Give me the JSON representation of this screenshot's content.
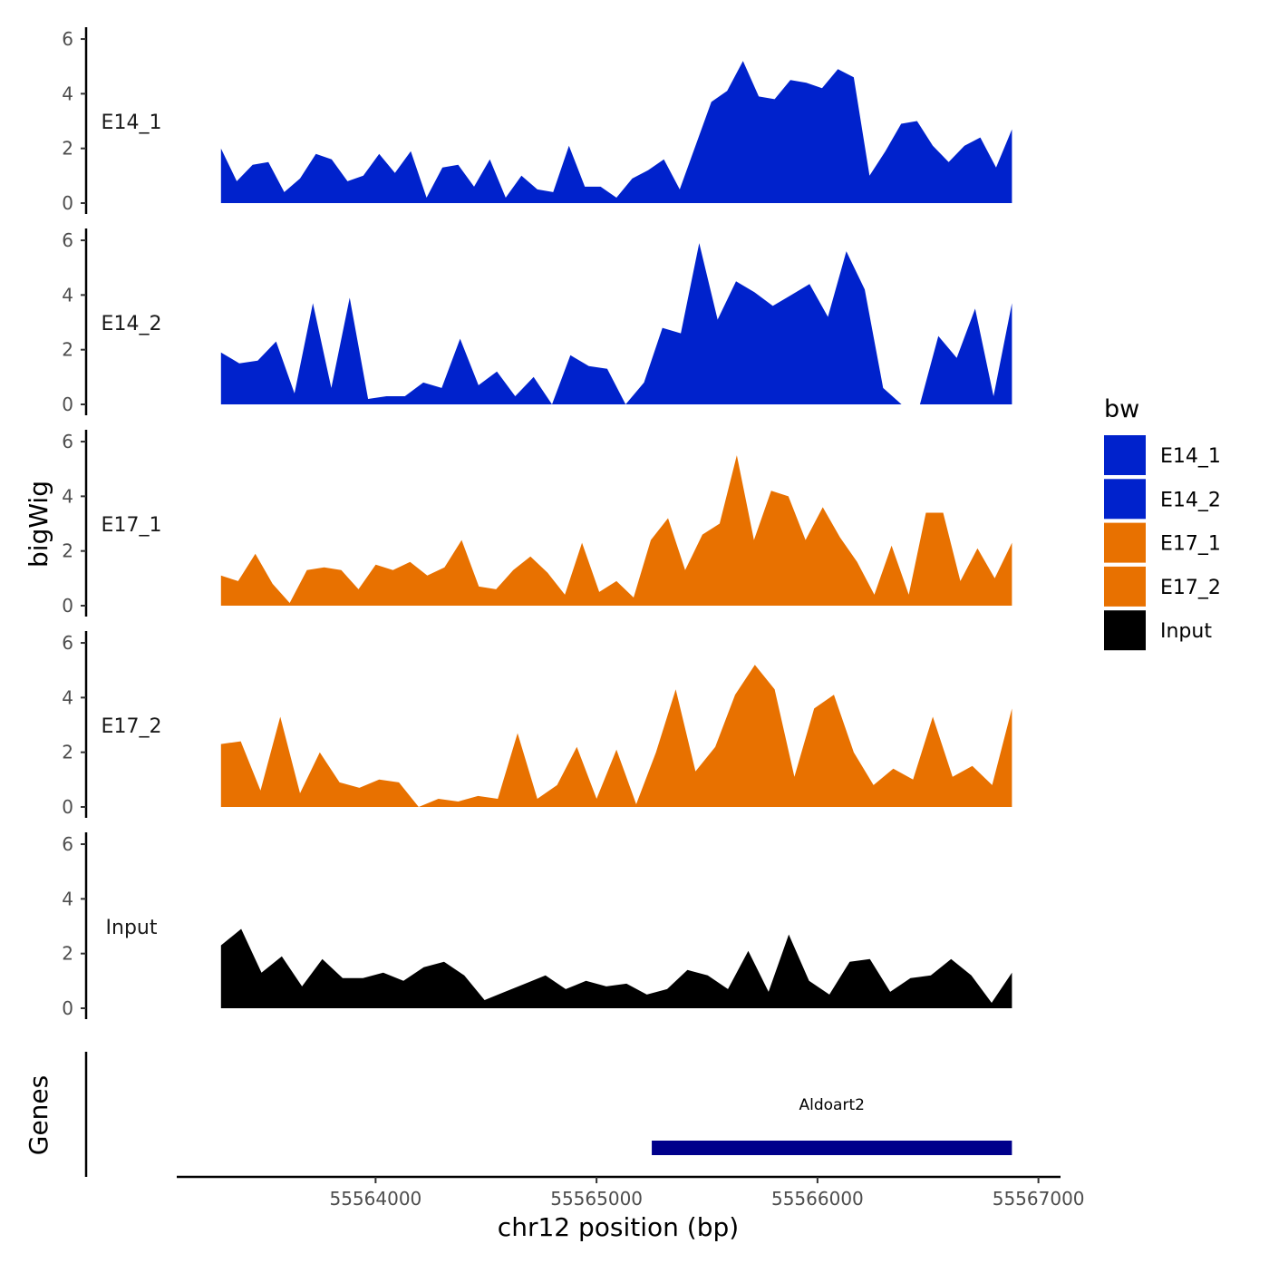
{
  "chart_data": {
    "type": "area",
    "region": "chr12",
    "xlabel": "chr12 position (bp)",
    "ylabel": "bigWig",
    "genes_label": "Genes",
    "xlim": [
      55563100,
      55567100
    ],
    "ylim": [
      0,
      6.3
    ],
    "yticks": [
      0,
      2,
      4,
      6
    ],
    "xticks": [
      55564000,
      55565000,
      55566000,
      55567000
    ],
    "xtick_labels": [
      "55564000",
      "55565000",
      "55566000",
      "55567000"
    ],
    "ytick_labels": [
      "0",
      "2",
      "4",
      "6"
    ],
    "data_start": 55563300,
    "data_step": 100,
    "legend": {
      "title": "bw",
      "entries": [
        {
          "label": "E14_1",
          "color": "#0022cc"
        },
        {
          "label": "E14_2",
          "color": "#0022cc"
        },
        {
          "label": "E17_1",
          "color": "#e87100"
        },
        {
          "label": "E17_2",
          "color": "#e87100"
        },
        {
          "label": "Input",
          "color": "#000000"
        }
      ]
    },
    "series": [
      {
        "name": "E14_1",
        "color": "#0022cc",
        "values": [
          2.0,
          0.8,
          1.4,
          1.5,
          0.4,
          0.9,
          1.8,
          1.6,
          0.8,
          1.0,
          1.8,
          1.1,
          1.9,
          0.2,
          1.3,
          1.4,
          0.6,
          1.6,
          0.2,
          1.0,
          0.5,
          0.4,
          2.1,
          0.6,
          0.6,
          0.2,
          0.9,
          1.2,
          1.6,
          0.5,
          2.1,
          3.7,
          4.1,
          5.2,
          3.9,
          3.8,
          4.5,
          4.4,
          4.2,
          4.9,
          4.6,
          1.0,
          1.9,
          2.9,
          3.0,
          2.1,
          1.5,
          2.1,
          2.4,
          1.3,
          2.7
        ]
      },
      {
        "name": "E14_2",
        "color": "#0022cc",
        "values": [
          1.9,
          1.5,
          1.6,
          2.3,
          0.4,
          3.7,
          0.6,
          3.9,
          0.2,
          0.3,
          0.3,
          0.8,
          0.6,
          2.4,
          0.7,
          1.2,
          0.3,
          1.0,
          0.0,
          1.8,
          1.4,
          1.3,
          0.0,
          0.8,
          2.8,
          2.6,
          5.9,
          3.1,
          4.5,
          4.1,
          3.6,
          4.0,
          4.4,
          3.2,
          5.6,
          4.2,
          0.6,
          0.0,
          0.0,
          2.5,
          1.7,
          3.5,
          0.3,
          3.7
        ]
      },
      {
        "name": "E17_1",
        "color": "#e87100",
        "values": [
          1.1,
          0.9,
          1.9,
          0.8,
          0.1,
          1.3,
          1.4,
          1.3,
          0.6,
          1.5,
          1.3,
          1.6,
          1.1,
          1.4,
          2.4,
          0.7,
          0.6,
          1.3,
          1.8,
          1.2,
          0.4,
          2.3,
          0.5,
          0.9,
          0.3,
          2.4,
          3.2,
          1.3,
          2.6,
          3.0,
          5.5,
          2.4,
          4.2,
          4.0,
          2.4,
          3.6,
          2.5,
          1.6,
          0.4,
          2.2,
          0.4,
          3.4,
          3.4,
          0.9,
          2.1,
          1.0,
          2.3
        ]
      },
      {
        "name": "E17_2",
        "color": "#e87100",
        "values": [
          2.3,
          2.4,
          0.6,
          3.3,
          0.5,
          2.0,
          0.9,
          0.7,
          1.0,
          0.9,
          0.0,
          0.3,
          0.2,
          0.4,
          0.3,
          2.7,
          0.3,
          0.8,
          2.2,
          0.3,
          2.1,
          0.1,
          2.0,
          4.3,
          1.3,
          2.2,
          4.1,
          5.2,
          4.3,
          1.1,
          3.6,
          4.1,
          2.0,
          0.8,
          1.4,
          1.0,
          3.3,
          1.1,
          1.5,
          0.8,
          3.6
        ]
      },
      {
        "name": "Input",
        "color": "#000000",
        "values": [
          2.3,
          2.9,
          1.3,
          1.9,
          0.8,
          1.8,
          1.1,
          1.1,
          1.3,
          1.0,
          1.5,
          1.7,
          1.2,
          0.3,
          0.6,
          0.9,
          1.2,
          0.7,
          1.0,
          0.8,
          0.9,
          0.5,
          0.7,
          1.4,
          1.2,
          0.7,
          2.1,
          0.6,
          2.7,
          1.0,
          0.5,
          1.7,
          1.8,
          0.6,
          1.1,
          1.2,
          1.8,
          1.2,
          0.2,
          1.3
        ]
      }
    ],
    "gene_track": {
      "genes": [
        {
          "name": "Aldoart2",
          "start": 55565250,
          "end": 55566880,
          "color": "#00008b"
        }
      ]
    }
  }
}
